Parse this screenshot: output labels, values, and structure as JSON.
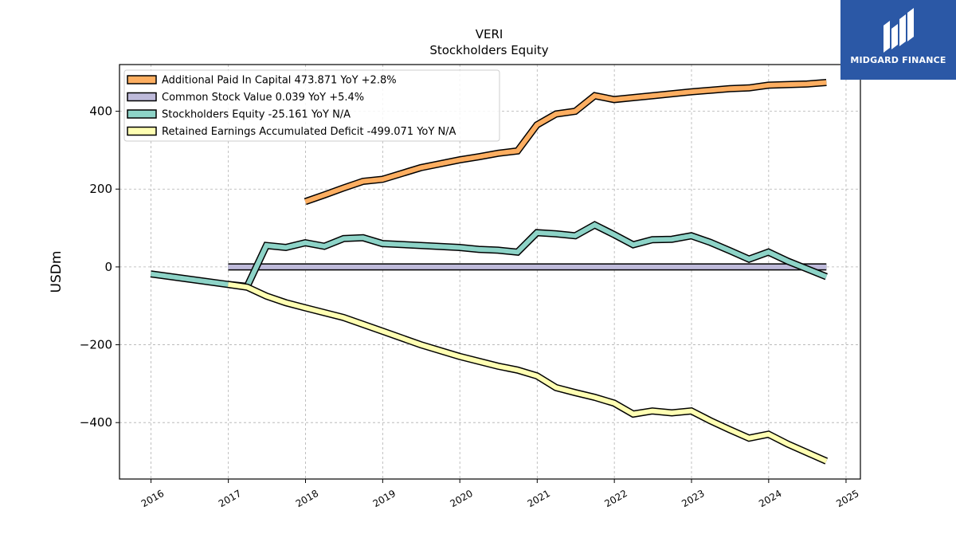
{
  "brand": {
    "logo_text": "MIDGARD FINANCE",
    "color": "#2b58a6"
  },
  "chart_data": {
    "type": "line",
    "title": "VERI",
    "subtitle": "Stockholders  Equity",
    "ylabel": "USDm",
    "xlabel": "",
    "ylim": [
      -545,
      520
    ],
    "xlim": [
      "2015-08-05",
      "2025-03-10"
    ],
    "yticks": [
      -400,
      -200,
      0,
      200,
      400
    ],
    "xticks": [
      "2016",
      "2017",
      "2018",
      "2019",
      "2020",
      "2021",
      "2022",
      "2023",
      "2024",
      "2025"
    ],
    "grid": true,
    "legend_position": "top-left",
    "series": [
      {
        "name": "Additional Paid In Capital  473.871 YoY +2.8%",
        "color": "#fdae61",
        "points": [
          [
            "2017-12-31",
            168
          ],
          [
            "2018-03-31",
            185
          ],
          [
            "2018-06-30",
            203
          ],
          [
            "2018-09-30",
            220
          ],
          [
            "2018-12-31",
            225
          ],
          [
            "2019-06-30",
            255
          ],
          [
            "2019-12-31",
            275
          ],
          [
            "2020-03-31",
            283
          ],
          [
            "2020-06-30",
            292
          ],
          [
            "2020-09-30",
            298
          ],
          [
            "2020-12-31",
            365
          ],
          [
            "2021-03-31",
            393
          ],
          [
            "2021-06-30",
            400
          ],
          [
            "2021-09-30",
            440
          ],
          [
            "2021-12-31",
            430
          ],
          [
            "2022-06-30",
            440
          ],
          [
            "2022-12-31",
            450
          ],
          [
            "2023-06-30",
            458
          ],
          [
            "2023-09-30",
            460
          ],
          [
            "2023-12-31",
            467
          ],
          [
            "2024-06-30",
            470
          ],
          [
            "2024-09-30",
            474
          ]
        ]
      },
      {
        "name": "Common Stock Value  0.039 YoY +5.4%",
        "color": "#bebada",
        "points": [
          [
            "2016-12-31",
            0
          ],
          [
            "2024-09-30",
            0
          ]
        ]
      },
      {
        "name": "Stockholders Equity  -25.161 YoY N/A",
        "color": "#8dd3c7",
        "points": [
          [
            "2015-12-31",
            -18
          ],
          [
            "2016-12-31",
            -45
          ],
          [
            "2017-03-31",
            -50
          ],
          [
            "2017-06-30",
            55
          ],
          [
            "2017-09-30",
            50
          ],
          [
            "2017-12-31",
            62
          ],
          [
            "2018-03-31",
            53
          ],
          [
            "2018-06-30",
            73
          ],
          [
            "2018-09-30",
            75
          ],
          [
            "2018-12-31",
            60
          ],
          [
            "2019-06-30",
            55
          ],
          [
            "2019-12-31",
            50
          ],
          [
            "2020-03-31",
            45
          ],
          [
            "2020-06-30",
            43
          ],
          [
            "2020-09-30",
            38
          ],
          [
            "2020-12-31",
            88
          ],
          [
            "2021-03-31",
            85
          ],
          [
            "2021-06-30",
            80
          ],
          [
            "2021-09-30",
            108
          ],
          [
            "2021-12-31",
            83
          ],
          [
            "2022-03-31",
            57
          ],
          [
            "2022-06-30",
            70
          ],
          [
            "2022-09-30",
            71
          ],
          [
            "2022-12-31",
            80
          ],
          [
            "2023-03-31",
            63
          ],
          [
            "2023-06-30",
            42
          ],
          [
            "2023-09-30",
            20
          ],
          [
            "2023-12-31",
            38
          ],
          [
            "2024-03-31",
            15
          ],
          [
            "2024-09-30",
            -25
          ]
        ]
      },
      {
        "name": "Retained Earnings Accumulated Deficit  -499.071 YoY N/A",
        "color": "#ffffb3",
        "points": [
          [
            "2016-12-31",
            -45
          ],
          [
            "2017-03-31",
            -52
          ],
          [
            "2017-06-30",
            -75
          ],
          [
            "2017-09-30",
            -92
          ],
          [
            "2017-12-31",
            -105
          ],
          [
            "2018-06-30",
            -130
          ],
          [
            "2018-12-31",
            -165
          ],
          [
            "2019-06-30",
            -200
          ],
          [
            "2019-12-31",
            -230
          ],
          [
            "2020-06-30",
            -255
          ],
          [
            "2020-09-30",
            -265
          ],
          [
            "2020-12-31",
            -280
          ],
          [
            "2021-03-31",
            -310
          ],
          [
            "2021-06-30",
            -323
          ],
          [
            "2021-09-30",
            -335
          ],
          [
            "2021-12-31",
            -350
          ],
          [
            "2022-03-31",
            -378
          ],
          [
            "2022-06-30",
            -370
          ],
          [
            "2022-09-30",
            -375
          ],
          [
            "2022-12-31",
            -370
          ],
          [
            "2023-03-31",
            -395
          ],
          [
            "2023-06-30",
            -418
          ],
          [
            "2023-09-30",
            -440
          ],
          [
            "2023-12-31",
            -430
          ],
          [
            "2024-03-31",
            -455
          ],
          [
            "2024-09-30",
            -499
          ]
        ]
      }
    ]
  }
}
